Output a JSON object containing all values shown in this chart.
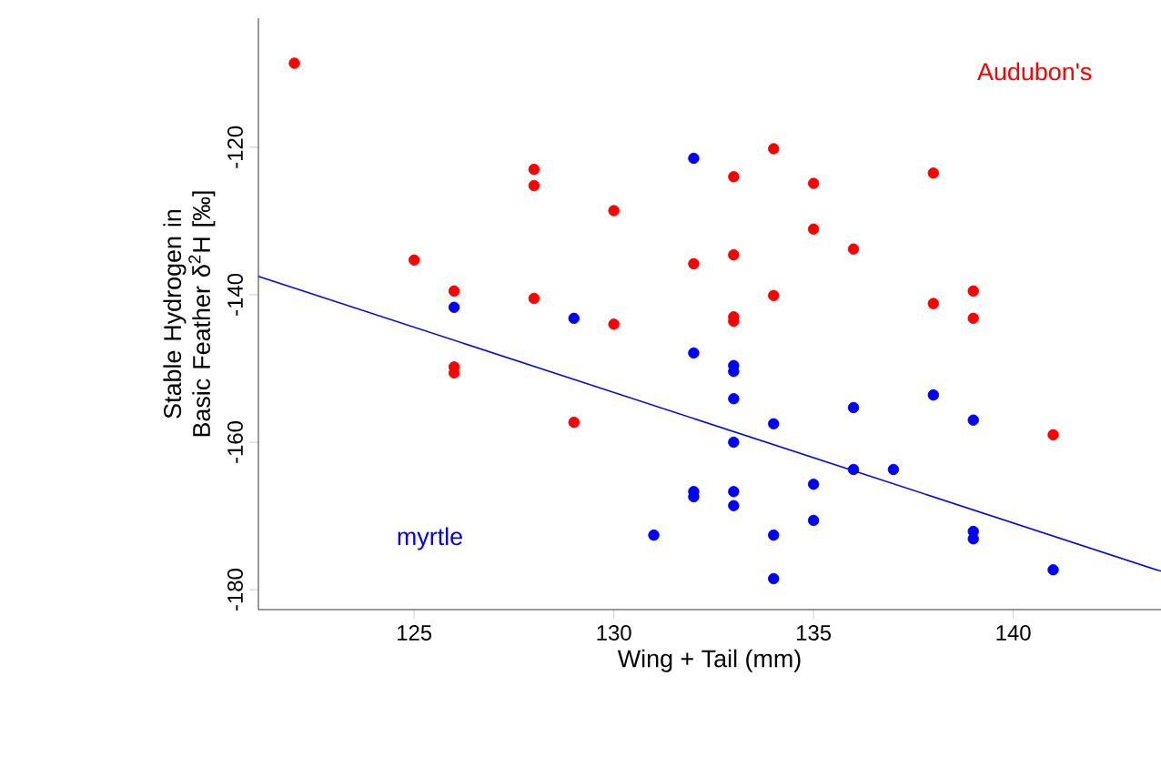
{
  "chart_data": {
    "type": "scatter",
    "xlabel": "Wing + Tail (mm)",
    "ylabel": "Stable Hydrogen in Basic Feather δ$^{2}$H  [‰]",
    "xlim": [
      121.1,
      143.7
    ],
    "ylim": [
      -182.7,
      -102.5
    ],
    "xticks": [
      125,
      130,
      135,
      140
    ],
    "yticks": [
      -120,
      -140,
      -160,
      -180
    ],
    "grid": false,
    "marker": "circle",
    "series": [
      {
        "name": "Audubon's",
        "color": "#ff0000",
        "x": [
          122,
          125,
          126,
          126,
          126,
          128,
          128,
          128,
          130,
          130,
          129,
          132,
          133,
          133,
          133,
          133,
          134,
          134,
          135,
          135,
          136,
          138,
          138,
          139,
          139,
          141
        ],
        "values": [
          -108.6,
          -135.3,
          -139.5,
          -149.8,
          -150.6,
          -123,
          -125.2,
          -140.5,
          -128.6,
          -144,
          -157.3,
          -135.8,
          -124,
          -134.6,
          -143,
          -143.6,
          -120.2,
          -140.1,
          -124.9,
          -131.1,
          -133.8,
          -123.5,
          -141.2,
          -139.5,
          -143.2,
          -159
        ]
      },
      {
        "name": "myrtle",
        "color": "#0000ff",
        "x": [
          126,
          129,
          132,
          132,
          133,
          133,
          133,
          133,
          132,
          132,
          133,
          133,
          131,
          134,
          134,
          134,
          135,
          135,
          136,
          136,
          137,
          138,
          139,
          139,
          139,
          141
        ],
        "values": [
          -141.7,
          -143.2,
          -121.5,
          -147.9,
          -149.6,
          -150.4,
          -154.1,
          -160,
          -166.7,
          -167.4,
          -166.7,
          -168.6,
          -172.6,
          -157.5,
          -172.6,
          -178.5,
          -165.7,
          -170.6,
          -155.3,
          -163.7,
          -163.7,
          -153.6,
          -157,
          -172.1,
          -173.1,
          -177.3
        ]
      },
      {
        "type": "line",
        "marker": "none",
        "color": "#0000ff",
        "x": [
          121.1,
          143.7
        ],
        "values": [
          -137.5,
          -177.5
        ]
      }
    ]
  }
}
